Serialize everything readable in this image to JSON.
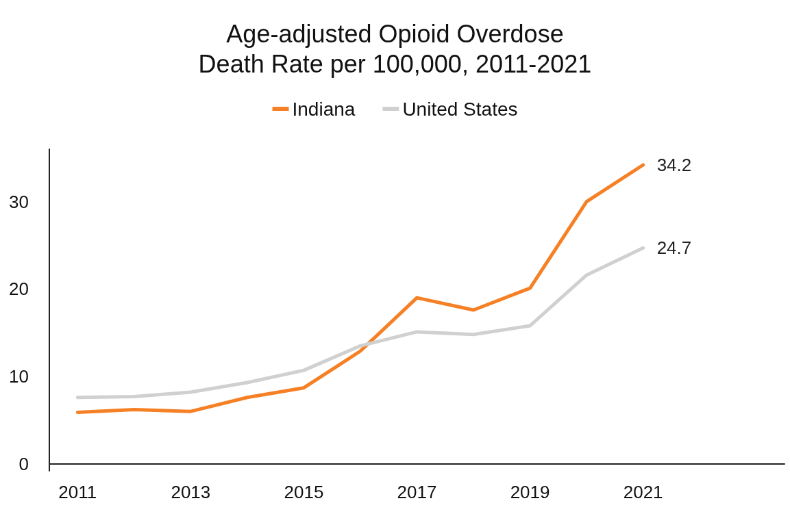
{
  "chart_data": {
    "type": "line",
    "title": "Age-adjusted Opioid Overdose\nDeath Rate per 100,000, 2011-2021",
    "x": [
      2011,
      2012,
      2013,
      2014,
      2015,
      2016,
      2017,
      2018,
      2019,
      2020,
      2021
    ],
    "series": [
      {
        "name": "Indiana",
        "color": "#f58025",
        "values": [
          5.9,
          6.2,
          6.0,
          7.6,
          8.7,
          12.9,
          19.0,
          17.6,
          20.1,
          30.0,
          34.2
        ],
        "value_labels": [
          null,
          null,
          null,
          null,
          null,
          null,
          null,
          null,
          null,
          null,
          "34.2"
        ]
      },
      {
        "name": "United States",
        "color": "#d0d0d0",
        "values": [
          7.6,
          7.7,
          8.2,
          9.3,
          10.7,
          13.5,
          15.1,
          14.8,
          15.8,
          21.6,
          24.7
        ],
        "value_labels": [
          null,
          null,
          null,
          null,
          null,
          null,
          null,
          null,
          null,
          null,
          "24.7"
        ]
      }
    ],
    "xlim": [
      2010.5,
      2023.5
    ],
    "xticks": [
      2011,
      2013,
      2015,
      2017,
      2019,
      2021
    ],
    "ylim": [
      -0.8,
      36
    ],
    "yticks": [
      0,
      10,
      20,
      30
    ],
    "grid": false,
    "legend": "top",
    "marker": "none",
    "line_style": "solid"
  }
}
